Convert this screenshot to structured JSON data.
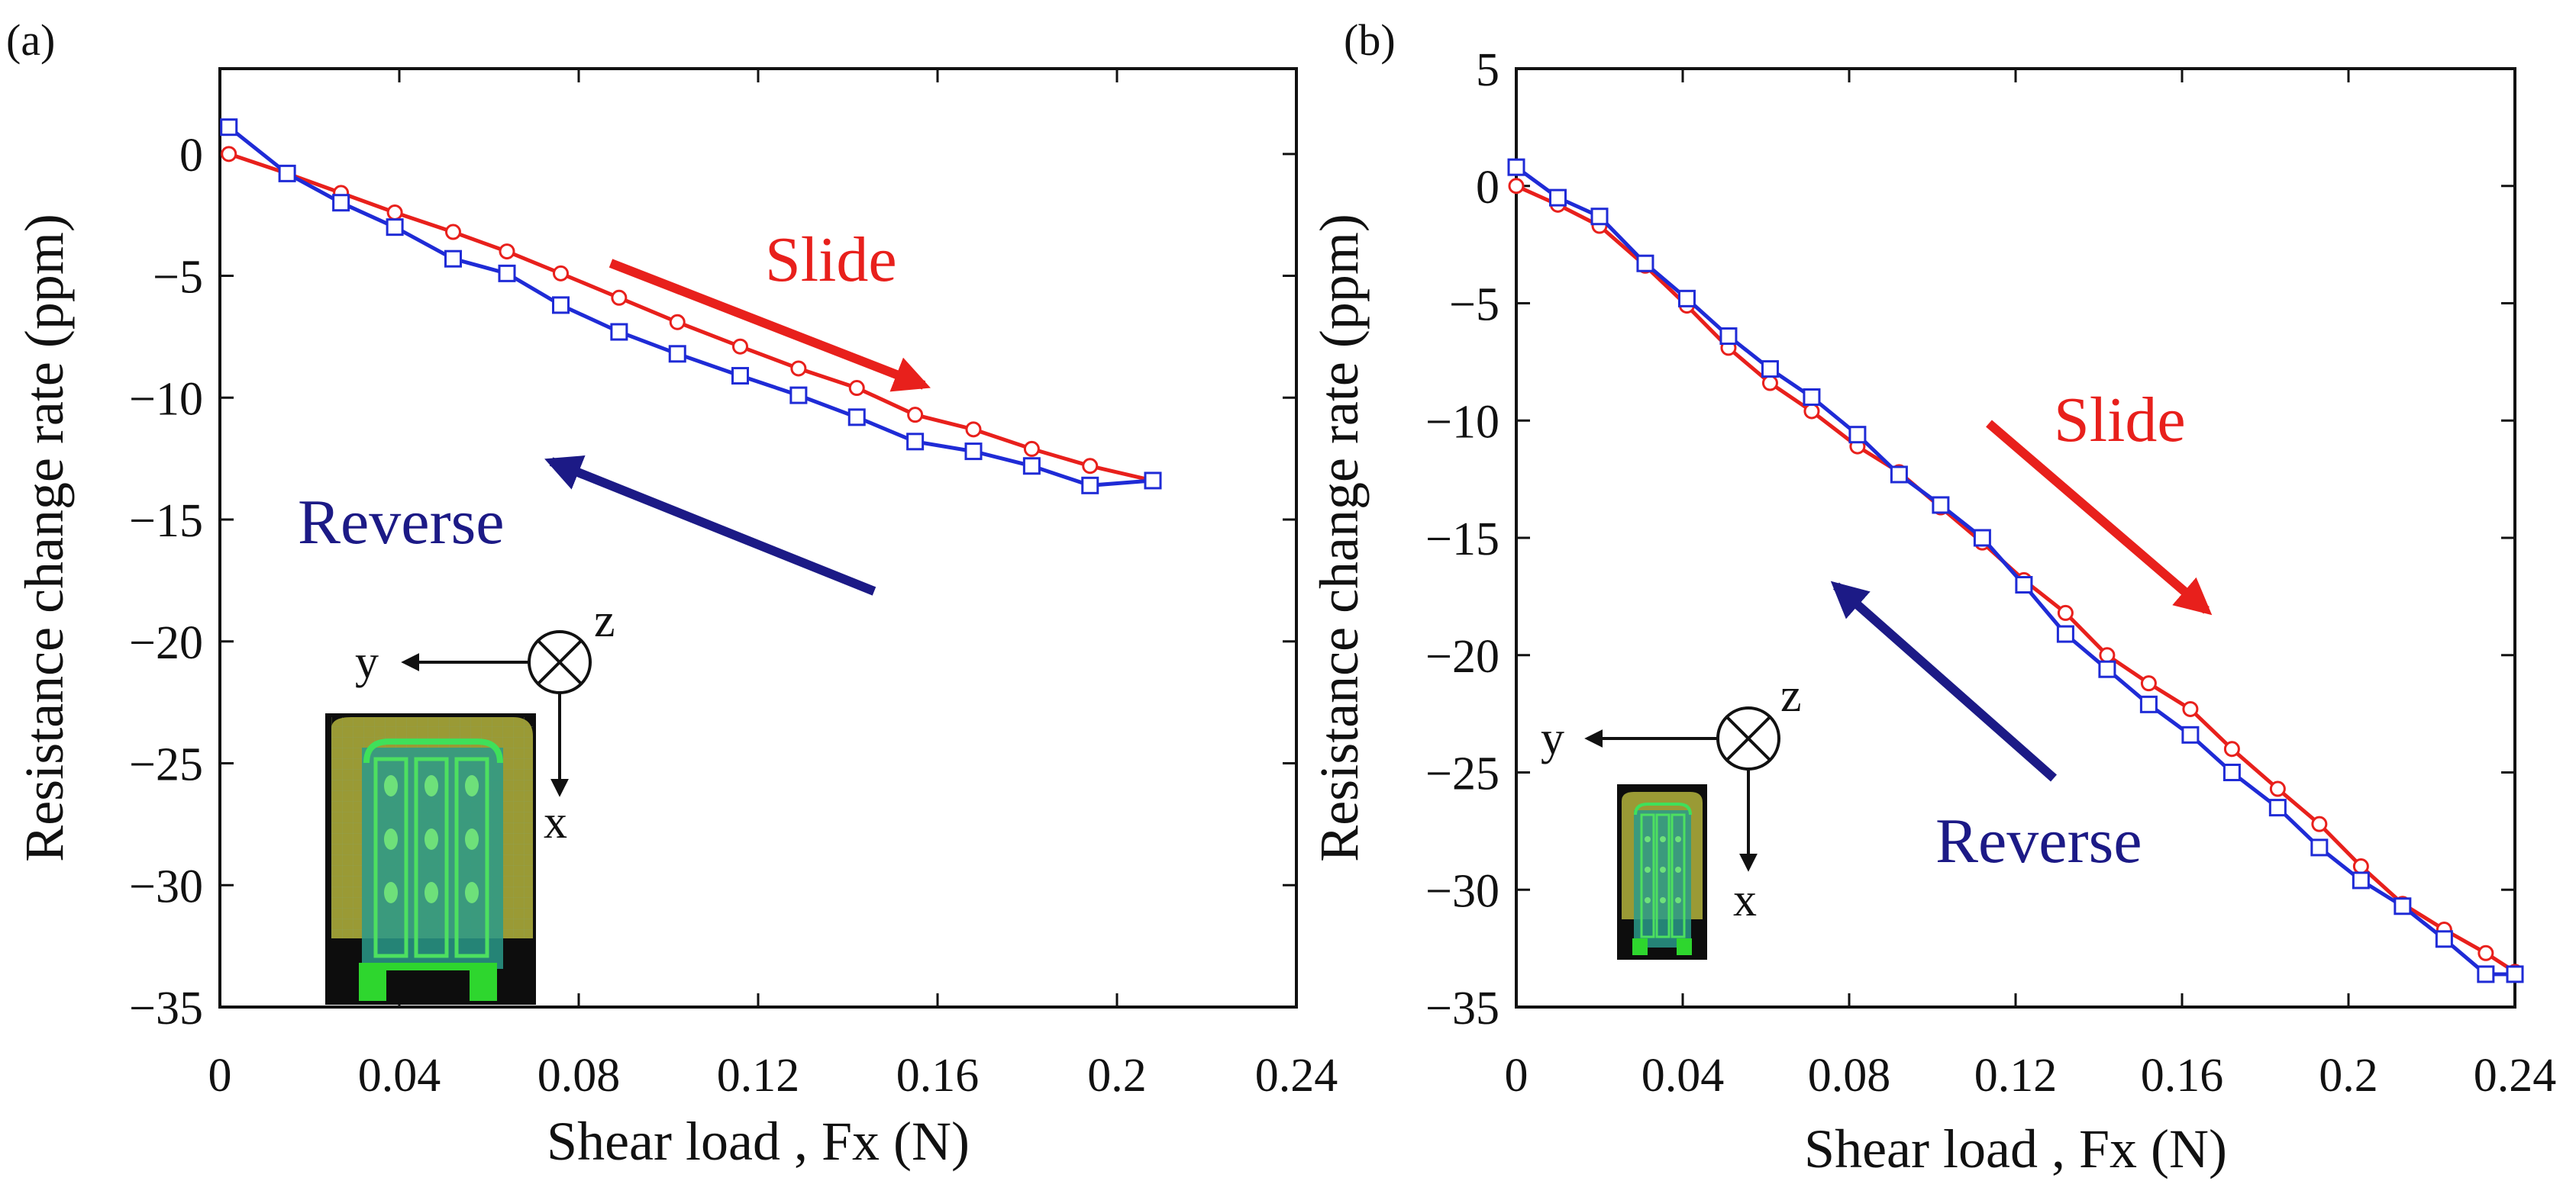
{
  "chart_data": [
    {
      "type": "line",
      "panel_label": "(a)",
      "xlabel": "Shear load , Fx (N)",
      "ylabel": "Resistance change rate (ppm)",
      "xlim": [
        0,
        0.24
      ],
      "ylim": [
        -35,
        3.5
      ],
      "x_ticks": [
        "0",
        "0.04",
        "0.08",
        "0.12",
        "0.16",
        "0.2",
        "0.24"
      ],
      "y_ticks": [
        "0",
        "-5",
        "-10",
        "-15",
        "-20",
        "-25",
        "-30",
        "-35"
      ],
      "x_tick_values": [
        0,
        0.04,
        0.08,
        0.12,
        0.16,
        0.2,
        0.24
      ],
      "y_tick_values": [
        0,
        -5,
        -10,
        -15,
        -20,
        -25,
        -30,
        -35
      ],
      "series": [
        {
          "name": "Slide",
          "color": "#e8201c",
          "marker": "circle",
          "x": [
            0.002,
            0.015,
            0.027,
            0.039,
            0.052,
            0.064,
            0.076,
            0.089,
            0.102,
            0.116,
            0.129,
            0.142,
            0.155,
            0.168,
            0.181,
            0.194,
            0.208
          ],
          "y": [
            0.0,
            -0.8,
            -1.6,
            -2.4,
            -3.2,
            -4.0,
            -4.9,
            -5.9,
            -6.9,
            -7.9,
            -8.8,
            -9.6,
            -10.7,
            -11.3,
            -12.1,
            -12.8,
            -13.4
          ]
        },
        {
          "name": "Reverse",
          "color": "#1f2bd6",
          "marker": "square",
          "x": [
            0.002,
            0.015,
            0.027,
            0.039,
            0.052,
            0.064,
            0.076,
            0.089,
            0.102,
            0.116,
            0.129,
            0.142,
            0.155,
            0.168,
            0.181,
            0.194,
            0.208
          ],
          "y": [
            1.1,
            -0.8,
            -2.0,
            -3.0,
            -4.3,
            -4.9,
            -6.2,
            -7.3,
            -8.2,
            -9.1,
            -9.9,
            -10.8,
            -11.8,
            -12.2,
            -12.8,
            -13.6,
            -13.4
          ]
        }
      ],
      "annotations": {
        "slide": "Slide",
        "reverse": "Reverse",
        "axis_y": "y",
        "axis_x": "x",
        "axis_z": "z"
      }
    },
    {
      "type": "line",
      "panel_label": "(b)",
      "xlabel": "Shear load , Fx (N)",
      "ylabel": "Resistance change rate (ppm)",
      "xlim": [
        0,
        0.24
      ],
      "ylim": [
        -35,
        5
      ],
      "x_ticks": [
        "0",
        "0.04",
        "0.08",
        "0.12",
        "0.16",
        "0.2",
        "0.24"
      ],
      "y_ticks": [
        "5",
        "0",
        "-5",
        "-10",
        "-15",
        "-20",
        "-25",
        "-30",
        "-35"
      ],
      "x_tick_values": [
        0,
        0.04,
        0.08,
        0.12,
        0.16,
        0.2,
        0.24
      ],
      "y_tick_values": [
        5,
        0,
        -5,
        -10,
        -15,
        -20,
        -25,
        -30,
        -35
      ],
      "series": [
        {
          "name": "Slide",
          "color": "#e8201c",
          "marker": "circle",
          "x": [
            0,
            0.01,
            0.02,
            0.031,
            0.041,
            0.051,
            0.061,
            0.071,
            0.082,
            0.092,
            0.102,
            0.112,
            0.122,
            0.132,
            0.142,
            0.152,
            0.162,
            0.172,
            0.183,
            0.193,
            0.203,
            0.213,
            0.223,
            0.233,
            0.24
          ],
          "y": [
            0.0,
            -0.8,
            -1.7,
            -3.4,
            -5.1,
            -6.9,
            -8.4,
            -9.6,
            -11.1,
            -12.2,
            -13.7,
            -15.2,
            -16.8,
            -18.2,
            -20.0,
            -21.2,
            -22.3,
            -24.0,
            -25.7,
            -27.2,
            -29.0,
            -30.6,
            -31.7,
            -32.7,
            -33.5
          ]
        },
        {
          "name": "Reverse",
          "color": "#1f2bd6",
          "marker": "square",
          "x": [
            0,
            0.01,
            0.02,
            0.031,
            0.041,
            0.051,
            0.061,
            0.071,
            0.082,
            0.092,
            0.102,
            0.112,
            0.122,
            0.132,
            0.142,
            0.152,
            0.162,
            0.172,
            0.183,
            0.193,
            0.203,
            0.213,
            0.223,
            0.233,
            0.24
          ],
          "y": [
            0.8,
            -0.5,
            -1.3,
            -3.3,
            -4.8,
            -6.4,
            -7.8,
            -9.0,
            -10.6,
            -12.3,
            -13.6,
            -15.0,
            -17.0,
            -19.1,
            -20.6,
            -22.1,
            -23.4,
            -25.0,
            -26.5,
            -28.2,
            -29.6,
            -30.7,
            -32.1,
            -33.6,
            -33.6
          ]
        }
      ],
      "annotations": {
        "slide": "Slide",
        "reverse": "Reverse",
        "axis_y": "y",
        "axis_x": "x",
        "axis_z": "z"
      }
    }
  ]
}
